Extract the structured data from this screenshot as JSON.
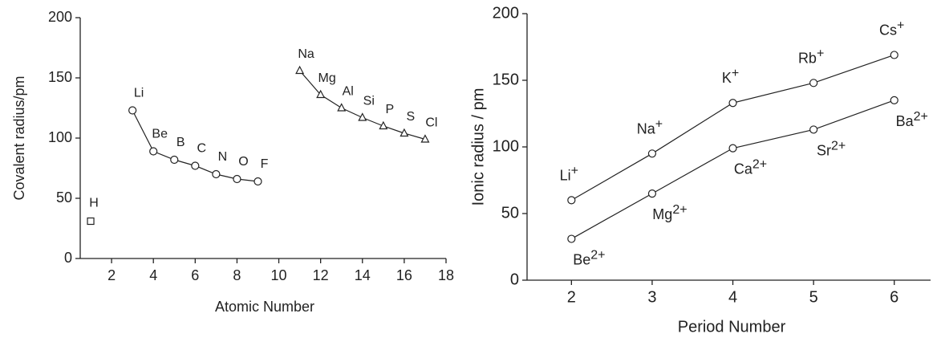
{
  "chart_data": [
    {
      "type": "scatter",
      "xlabel": "Atomic Number",
      "ylabel": "Covalent radius/pm",
      "xlim": [
        0.5,
        18
      ],
      "xticks": [
        2,
        4,
        6,
        8,
        10,
        12,
        14,
        16,
        18
      ],
      "ylim": [
        0,
        200
      ],
      "yticks": [
        0,
        50,
        100,
        150,
        200
      ],
      "series": [
        {
          "marker": "square",
          "line": false,
          "color": "#222222",
          "x": [
            1
          ],
          "values": [
            31
          ],
          "point_labels": [
            "H"
          ]
        },
        {
          "marker": "circle",
          "line": true,
          "color": "#222222",
          "x": [
            3,
            4,
            5,
            6,
            7,
            8,
            9
          ],
          "values": [
            123,
            89,
            82,
            77,
            70,
            66,
            64
          ],
          "point_labels": [
            "Li",
            "Be",
            "B",
            "C",
            "N",
            "O",
            "F"
          ]
        },
        {
          "marker": "triangle",
          "line": true,
          "color": "#222222",
          "x": [
            11,
            12,
            13,
            14,
            15,
            16,
            17
          ],
          "values": [
            156,
            136,
            125,
            117,
            110,
            104,
            99
          ],
          "point_labels": [
            "Na",
            "Mg",
            "Al",
            "Si",
            "P",
            "S",
            "Cl"
          ]
        }
      ]
    },
    {
      "type": "scatter",
      "xlabel": "Period Number",
      "ylabel": "Ionic radius / pm",
      "xlim": [
        1.45,
        6.45
      ],
      "xticks": [
        2,
        3,
        4,
        5,
        6
      ],
      "ylim": [
        0,
        200
      ],
      "yticks": [
        0,
        50,
        100,
        150,
        200
      ],
      "series": [
        {
          "marker": "circle",
          "line": true,
          "color": "#222222",
          "x": [
            2,
            3,
            4,
            5,
            6
          ],
          "values": [
            60,
            95,
            133,
            148,
            169
          ],
          "point_labels": [
            {
              "text": "Li",
              "sup": "+"
            },
            {
              "text": "Na",
              "sup": "+"
            },
            {
              "text": "K",
              "sup": "+"
            },
            {
              "text": "Rb",
              "sup": "+"
            },
            {
              "text": "Cs",
              "sup": "+"
            }
          ]
        },
        {
          "marker": "circle",
          "line": true,
          "color": "#222222",
          "x": [
            2,
            3,
            4,
            5,
            6
          ],
          "values": [
            31,
            65,
            99,
            113,
            135
          ],
          "point_labels": [
            {
              "text": "Be",
              "sup": "2+"
            },
            {
              "text": "Mg",
              "sup": "2+"
            },
            {
              "text": "Ca",
              "sup": "2+"
            },
            {
              "text": "Sr",
              "sup": "2+"
            },
            {
              "text": "Ba",
              "sup": "2+"
            }
          ]
        }
      ]
    }
  ]
}
